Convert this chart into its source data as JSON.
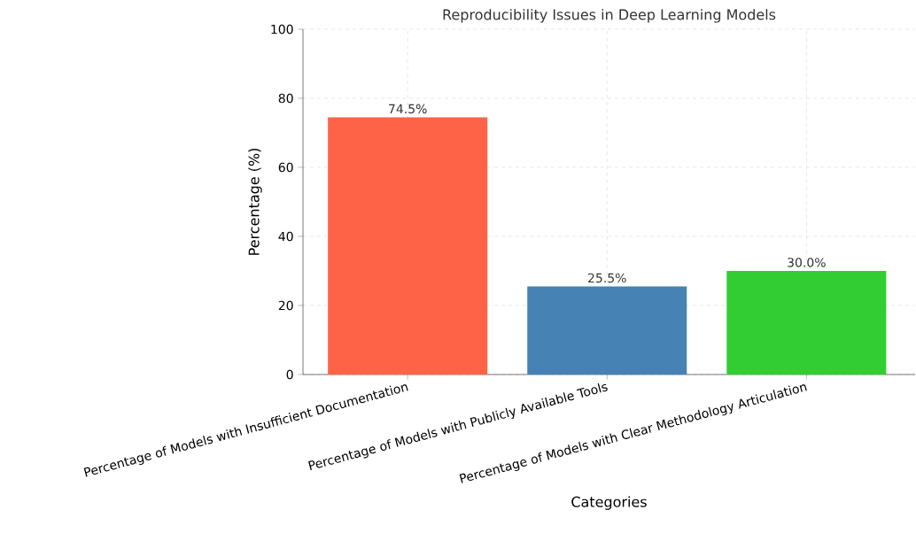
{
  "chart_data": {
    "type": "bar",
    "title": "Reproducibility Issues in Deep Learning Models",
    "xlabel": "Categories",
    "ylabel": "Percentage (%)",
    "categories": [
      "Percentage of Models with Insufficient Documentation",
      "Percentage of Models with Publicly Available Tools",
      "Percentage of Models with Clear Methodology Articulation"
    ],
    "values": [
      74.5,
      25.5,
      30.0
    ],
    "colors": [
      "#ff6347",
      "#4682b4",
      "#32cd32"
    ],
    "value_labels": [
      "74.5%",
      "25.5%",
      "30.0%"
    ],
    "ylim": [
      0,
      100
    ],
    "yticks": [
      0,
      20,
      40,
      60,
      80,
      100
    ],
    "grid": true
  }
}
